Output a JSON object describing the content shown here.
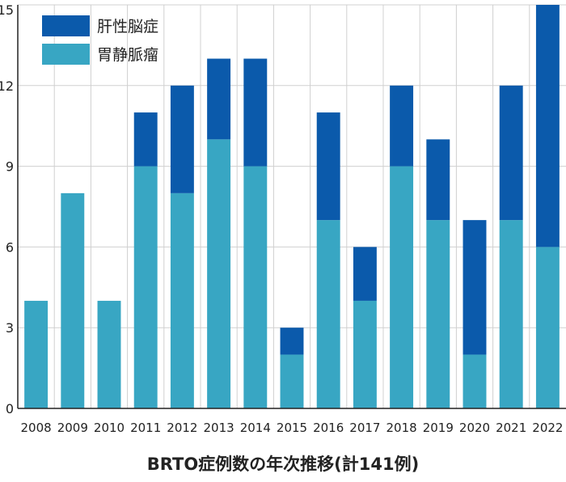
{
  "chart_data": {
    "type": "bar",
    "stacked": true,
    "title": "BRTO症例数の年次推移(計141例)",
    "xlabel": "",
    "ylabel": "",
    "ylim": [
      0,
      15
    ],
    "yticks": [
      0,
      3,
      6,
      9,
      12,
      15
    ],
    "grid": true,
    "legend_position": "top-left",
    "categories": [
      "2008",
      "2009",
      "2010",
      "2011",
      "2012",
      "2013",
      "2014",
      "2015",
      "2016",
      "2017",
      "2018",
      "2019",
      "2020",
      "2021",
      "2022"
    ],
    "series": [
      {
        "name": "胃静脈瘤",
        "color": "#38a6c3",
        "values": [
          4,
          8,
          4,
          9,
          8,
          10,
          9,
          2,
          7,
          4,
          9,
          7,
          2,
          7,
          6
        ]
      },
      {
        "name": "肝性脳症",
        "color": "#0b5aab",
        "values": [
          0,
          0,
          0,
          2,
          4,
          3,
          4,
          1,
          4,
          2,
          3,
          3,
          5,
          5,
          9
        ]
      }
    ],
    "legend_order": [
      "肝性脳症",
      "胃静脈瘤"
    ]
  }
}
